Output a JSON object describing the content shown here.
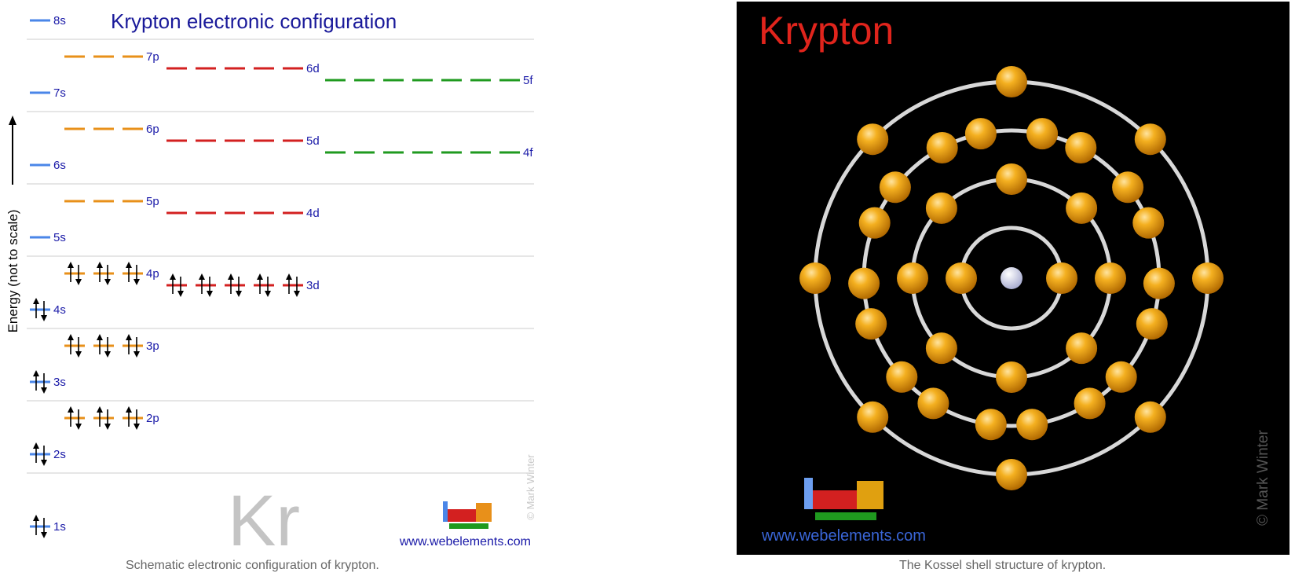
{
  "left_figure": {
    "title": "Krypton electronic configuration",
    "energy_axis_label": "Energy (not to scale)",
    "symbol": "Kr",
    "copyright": "© Mark Winter",
    "website": "www.webelements.com",
    "caption": "Schematic electronic configuration of krypton.",
    "colors": {
      "s": "#4a86e8",
      "p": "#e8901a",
      "d": "#d32020",
      "f": "#1f9a1f",
      "label": "#1a1aa8",
      "title": "#1a1a9a"
    },
    "orbitals": [
      {
        "label": "1s",
        "type": "s",
        "electrons": 2
      },
      {
        "label": "2s",
        "type": "s",
        "electrons": 2
      },
      {
        "label": "2p",
        "type": "p",
        "electrons": 6
      },
      {
        "label": "3s",
        "type": "s",
        "electrons": 2
      },
      {
        "label": "3p",
        "type": "p",
        "electrons": 6
      },
      {
        "label": "4s",
        "type": "s",
        "electrons": 2
      },
      {
        "label": "3d",
        "type": "d",
        "electrons": 10
      },
      {
        "label": "4p",
        "type": "p",
        "electrons": 6
      },
      {
        "label": "5s",
        "type": "s",
        "electrons": 0
      },
      {
        "label": "4d",
        "type": "d",
        "electrons": 0
      },
      {
        "label": "5p",
        "type": "p",
        "electrons": 0
      },
      {
        "label": "6s",
        "type": "s",
        "electrons": 0
      },
      {
        "label": "4f",
        "type": "f",
        "electrons": 0
      },
      {
        "label": "5d",
        "type": "d",
        "electrons": 0
      },
      {
        "label": "6p",
        "type": "p",
        "electrons": 0
      },
      {
        "label": "7s",
        "type": "s",
        "electrons": 0
      },
      {
        "label": "5f",
        "type": "f",
        "electrons": 0
      },
      {
        "label": "6d",
        "type": "d",
        "electrons": 0
      },
      {
        "label": "7p",
        "type": "p",
        "electrons": 0
      },
      {
        "label": "8s",
        "type": "s",
        "electrons": 0
      }
    ]
  },
  "right_figure": {
    "title": "Krypton",
    "copyright": "© Mark Winter",
    "website": "www.webelements.com",
    "caption": "The Kossel shell structure of krypton.",
    "shell_electrons": [
      2,
      8,
      18,
      8
    ],
    "colors": {
      "title": "#e0241c",
      "electron": "#f0a010",
      "nucleus": "#d8dcf0",
      "background": "#000000",
      "website": "#3a66d8"
    }
  }
}
